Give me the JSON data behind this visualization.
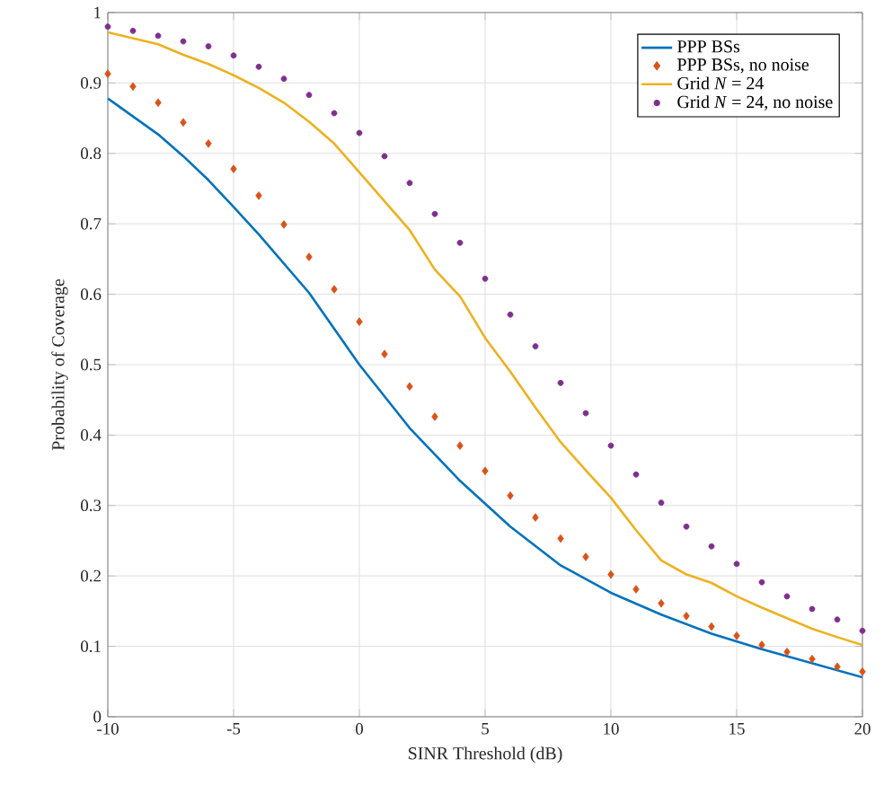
{
  "chart_data": {
    "type": "line",
    "xlabel": "SINR Threshold (dB)",
    "ylabel": "Probability of Coverage",
    "xlim": [
      -10,
      20
    ],
    "ylim": [
      0,
      1
    ],
    "xticks": [
      -10,
      -5,
      0,
      5,
      10,
      15,
      20
    ],
    "yticks": [
      0,
      0.1,
      0.2,
      0.3,
      0.4,
      0.5,
      0.6,
      0.7,
      0.8,
      0.9,
      1
    ],
    "grid": true,
    "legend": "top right",
    "series": [
      {
        "name": "PPP BSs",
        "color": "#0072bd",
        "marker": "none",
        "line_style": "solid",
        "x": [
          -10,
          -8,
          -7,
          -6,
          -5,
          -4,
          -2,
          0,
          2,
          4,
          6,
          8,
          10,
          12,
          14,
          16,
          18,
          20
        ],
        "values": [
          0.878,
          0.827,
          0.796,
          0.762,
          0.724,
          0.685,
          0.602,
          0.5,
          0.41,
          0.335,
          0.27,
          0.215,
          0.176,
          0.145,
          0.118,
          0.096,
          0.076,
          0.056
        ]
      },
      {
        "name": "PPP BSs, no noise",
        "type": "scatter",
        "color": "#d95319",
        "marker": "diamond",
        "x": [
          -10,
          -9,
          -8,
          -7,
          -6,
          -5,
          -4,
          -3,
          -2,
          -1,
          0,
          1,
          2,
          3,
          4,
          5,
          6,
          7,
          8,
          9,
          10,
          11,
          12,
          13,
          14,
          15,
          16,
          17,
          18,
          19,
          20
        ],
        "values": [
          0.913,
          0.895,
          0.872,
          0.844,
          0.814,
          0.778,
          0.74,
          0.699,
          0.653,
          0.607,
          0.561,
          0.515,
          0.469,
          0.426,
          0.385,
          0.349,
          0.314,
          0.283,
          0.253,
          0.227,
          0.202,
          0.181,
          0.161,
          0.143,
          0.128,
          0.115,
          0.102,
          0.092,
          0.082,
          0.071,
          0.064
        ]
      },
      {
        "name": "Grid *N* = 24",
        "color": "#edb120",
        "marker": "none",
        "line_style": "solid",
        "x": [
          -10,
          -8,
          -7,
          -6,
          -5,
          -4,
          -3,
          -2,
          -1,
          0,
          2,
          3,
          4,
          5,
          6,
          7,
          8,
          9,
          10,
          11,
          12,
          13,
          14,
          15,
          16,
          17,
          18,
          19,
          20
        ],
        "values": [
          0.972,
          0.955,
          0.94,
          0.927,
          0.911,
          0.893,
          0.872,
          0.845,
          0.814,
          0.773,
          0.691,
          0.635,
          0.597,
          0.538,
          0.49,
          0.439,
          0.39,
          0.35,
          0.311,
          0.265,
          0.222,
          0.202,
          0.19,
          0.171,
          0.155,
          0.14,
          0.125,
          0.113,
          0.102
        ]
      },
      {
        "name": "Grid *N* = 24, no noise",
        "type": "scatter",
        "color": "#7e2f8e",
        "marker": "circle",
        "x": [
          -10,
          -9,
          -8,
          -7,
          -6,
          -5,
          -4,
          -3,
          -2,
          -1,
          0,
          1,
          2,
          3,
          4,
          5,
          6,
          7,
          8,
          9,
          10,
          11,
          12,
          13,
          14,
          15,
          16,
          17,
          18,
          19,
          20
        ],
        "values": [
          0.98,
          0.974,
          0.967,
          0.959,
          0.952,
          0.939,
          0.923,
          0.906,
          0.883,
          0.857,
          0.829,
          0.796,
          0.758,
          0.714,
          0.673,
          0.622,
          0.571,
          0.526,
          0.474,
          0.431,
          0.385,
          0.344,
          0.304,
          0.27,
          0.242,
          0.217,
          0.191,
          0.171,
          0.153,
          0.138,
          0.122
        ]
      }
    ]
  }
}
